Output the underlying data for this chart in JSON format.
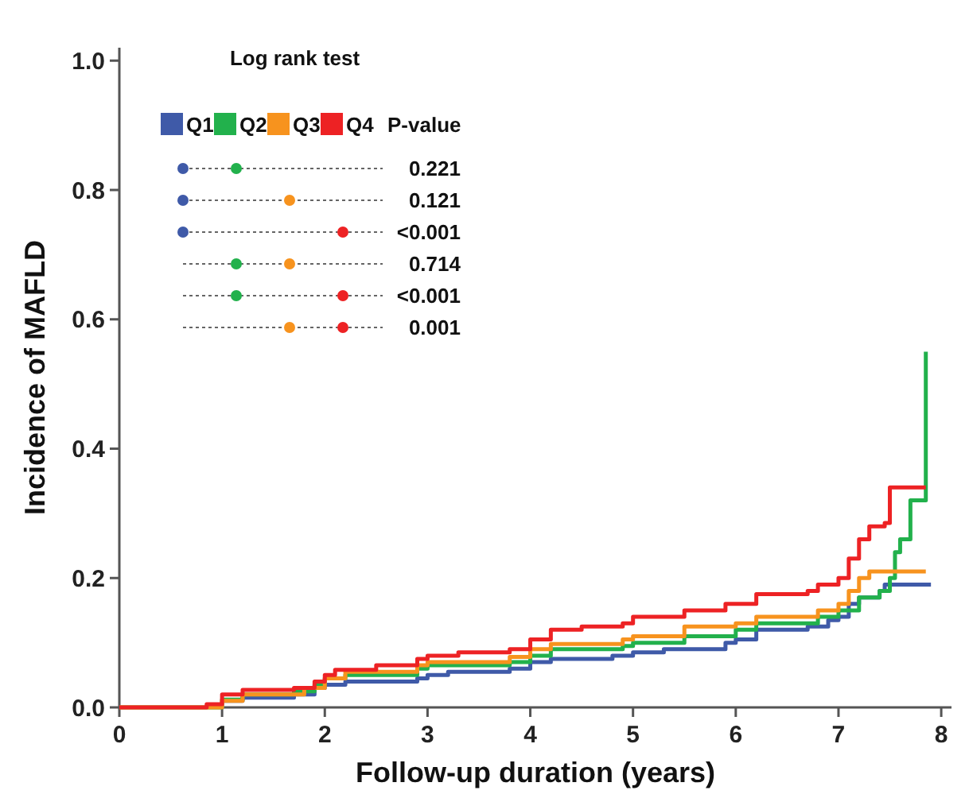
{
  "chart_data": {
    "type": "step",
    "xlabel": "Follow-up duration (years)",
    "ylabel": "Incidence of MAFLD",
    "xlim": [
      0,
      8.1
    ],
    "xticks": [
      0,
      1,
      2,
      3,
      4,
      5,
      6,
      7,
      8
    ],
    "ylim": [
      0,
      1.02
    ],
    "yticks": [
      {
        "value": 0,
        "label": "0.0"
      },
      {
        "value": 0.2,
        "label": "0.2"
      },
      {
        "value": 0.4,
        "label": "0.4"
      },
      {
        "value": 0.6,
        "label": "0.6"
      },
      {
        "value": 0.8,
        "label": "0.8"
      },
      {
        "value": 1,
        "label": "1.0"
      }
    ],
    "grid": false,
    "legend": "top left",
    "annotations": [
      "Log rank test",
      "P-value",
      "0.221",
      "0.121",
      "<0.001",
      "0.714",
      "<0.001",
      "0.001"
    ],
    "series": [
      {
        "name": "Q1",
        "color": "#3f5aa8",
        "x": [
          1.0,
          1.2,
          1.7,
          1.9,
          2.0,
          2.2,
          2.9,
          3.0,
          3.2,
          3.8,
          4.0,
          4.2,
          4.8,
          5.0,
          5.3,
          5.9,
          6.0,
          6.2,
          6.7,
          6.9,
          7.0,
          7.1,
          7.2,
          7.4,
          7.45,
          7.9
        ],
        "values": [
          0.01,
          0.015,
          0.02,
          0.03,
          0.035,
          0.04,
          0.045,
          0.05,
          0.055,
          0.06,
          0.07,
          0.075,
          0.08,
          0.085,
          0.09,
          0.1,
          0.105,
          0.12,
          0.125,
          0.135,
          0.14,
          0.16,
          0.17,
          0.18,
          0.19,
          0.19
        ]
      },
      {
        "name": "Q2",
        "color": "#22b14c",
        "x": [
          0,
          0.85,
          1.0,
          1.2,
          1.7,
          1.9,
          2.0,
          2.2,
          2.9,
          3.0,
          3.8,
          4.0,
          4.2,
          4.9,
          5.0,
          5.5,
          6.0,
          6.2,
          6.8,
          7.0,
          7.2,
          7.4,
          7.5,
          7.55,
          7.6,
          7.7,
          7.85
        ],
        "values": [
          0,
          0,
          0.012,
          0.02,
          0.025,
          0.035,
          0.045,
          0.05,
          0.06,
          0.065,
          0.07,
          0.08,
          0.09,
          0.095,
          0.1,
          0.11,
          0.12,
          0.13,
          0.14,
          0.15,
          0.17,
          0.18,
          0.2,
          0.24,
          0.26,
          0.32,
          0.55
        ]
      },
      {
        "name": "Q3",
        "color": "#f7931e",
        "x": [
          0,
          0.9,
          1.0,
          1.2,
          1.8,
          2.0,
          2.2,
          2.9,
          3.0,
          3.8,
          4.0,
          4.2,
          4.9,
          5.0,
          5.5,
          6.0,
          6.2,
          6.8,
          7.0,
          7.1,
          7.2,
          7.3,
          7.85
        ],
        "values": [
          0,
          0,
          0.01,
          0.02,
          0.03,
          0.045,
          0.055,
          0.065,
          0.07,
          0.078,
          0.09,
          0.098,
          0.105,
          0.11,
          0.125,
          0.13,
          0.14,
          0.15,
          0.16,
          0.18,
          0.2,
          0.21,
          0.21
        ]
      },
      {
        "name": "Q4",
        "color": "#ed2224",
        "x": [
          0,
          0.7,
          0.85,
          1.0,
          1.2,
          1.7,
          1.9,
          2.0,
          2.1,
          2.5,
          2.9,
          3.0,
          3.3,
          3.8,
          4.0,
          4.2,
          4.5,
          4.9,
          5.0,
          5.5,
          5.9,
          6.2,
          6.7,
          6.8,
          7.0,
          7.1,
          7.2,
          7.3,
          7.45,
          7.5,
          7.85
        ],
        "values": [
          0,
          0,
          0.005,
          0.02,
          0.027,
          0.03,
          0.04,
          0.05,
          0.058,
          0.065,
          0.075,
          0.08,
          0.085,
          0.09,
          0.105,
          0.12,
          0.125,
          0.13,
          0.14,
          0.15,
          0.16,
          0.175,
          0.18,
          0.19,
          0.2,
          0.23,
          0.26,
          0.28,
          0.285,
          0.34,
          0.34
        ]
      }
    ]
  }
}
